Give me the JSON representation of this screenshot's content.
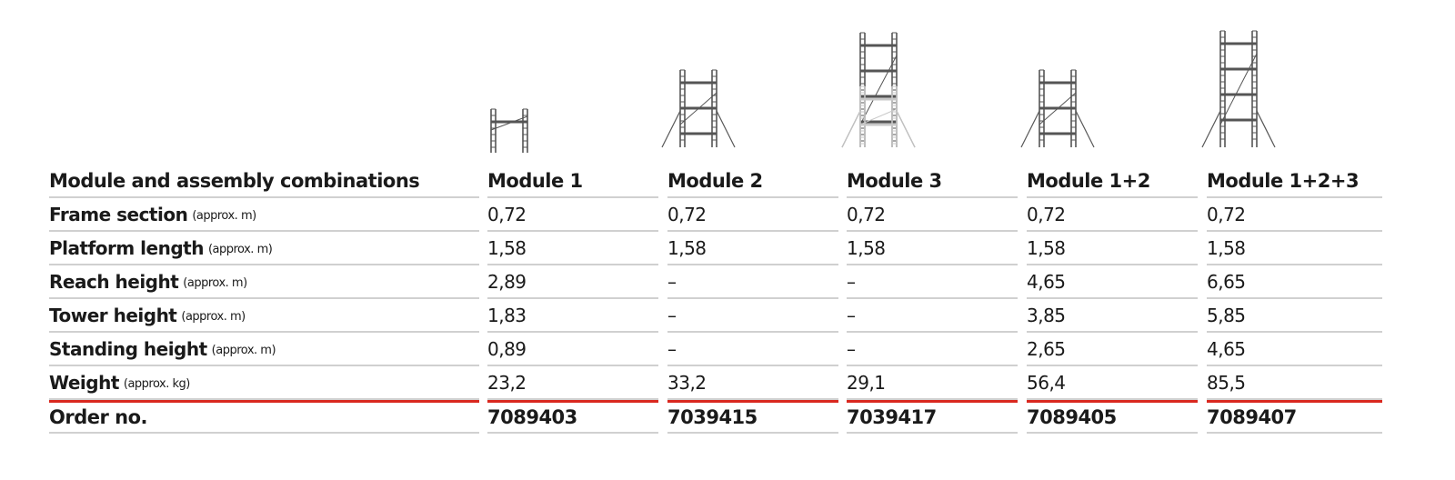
{
  "table": {
    "header": {
      "label": "Module and assembly combinations",
      "columns": [
        "Module 1",
        "Module 2",
        "Module 3",
        "Module 1+2",
        "Module 1+2+3"
      ]
    },
    "rows": [
      {
        "label": "Frame section",
        "unit": "(approx. m)",
        "cells": [
          "0,72",
          "0,72",
          "0,72",
          "0,72",
          "0,72"
        ]
      },
      {
        "label": "Platform length",
        "unit": "(approx. m)",
        "cells": [
          "1,58",
          "1,58",
          "1,58",
          "1,58",
          "1,58"
        ]
      },
      {
        "label": "Reach height",
        "unit": "(approx. m)",
        "cells": [
          "2,89",
          "–",
          "–",
          "4,65",
          "6,65"
        ]
      },
      {
        "label": "Tower height",
        "unit": "(approx. m)",
        "cells": [
          "1,83",
          "–",
          "–",
          "3,85",
          "5,85"
        ]
      },
      {
        "label": "Standing height",
        "unit": "(approx. m)",
        "cells": [
          "0,89",
          "–",
          "–",
          "2,65",
          "4,65"
        ]
      },
      {
        "label": "Weight",
        "unit": "(approx. kg)",
        "cells": [
          "23,2",
          "33,2",
          "29,1",
          "56,4",
          "85,5"
        ]
      }
    ],
    "order": {
      "label": "Order no.",
      "cells": [
        "7089403",
        "7039415",
        "7039417",
        "7089405",
        "7089407"
      ]
    }
  }
}
